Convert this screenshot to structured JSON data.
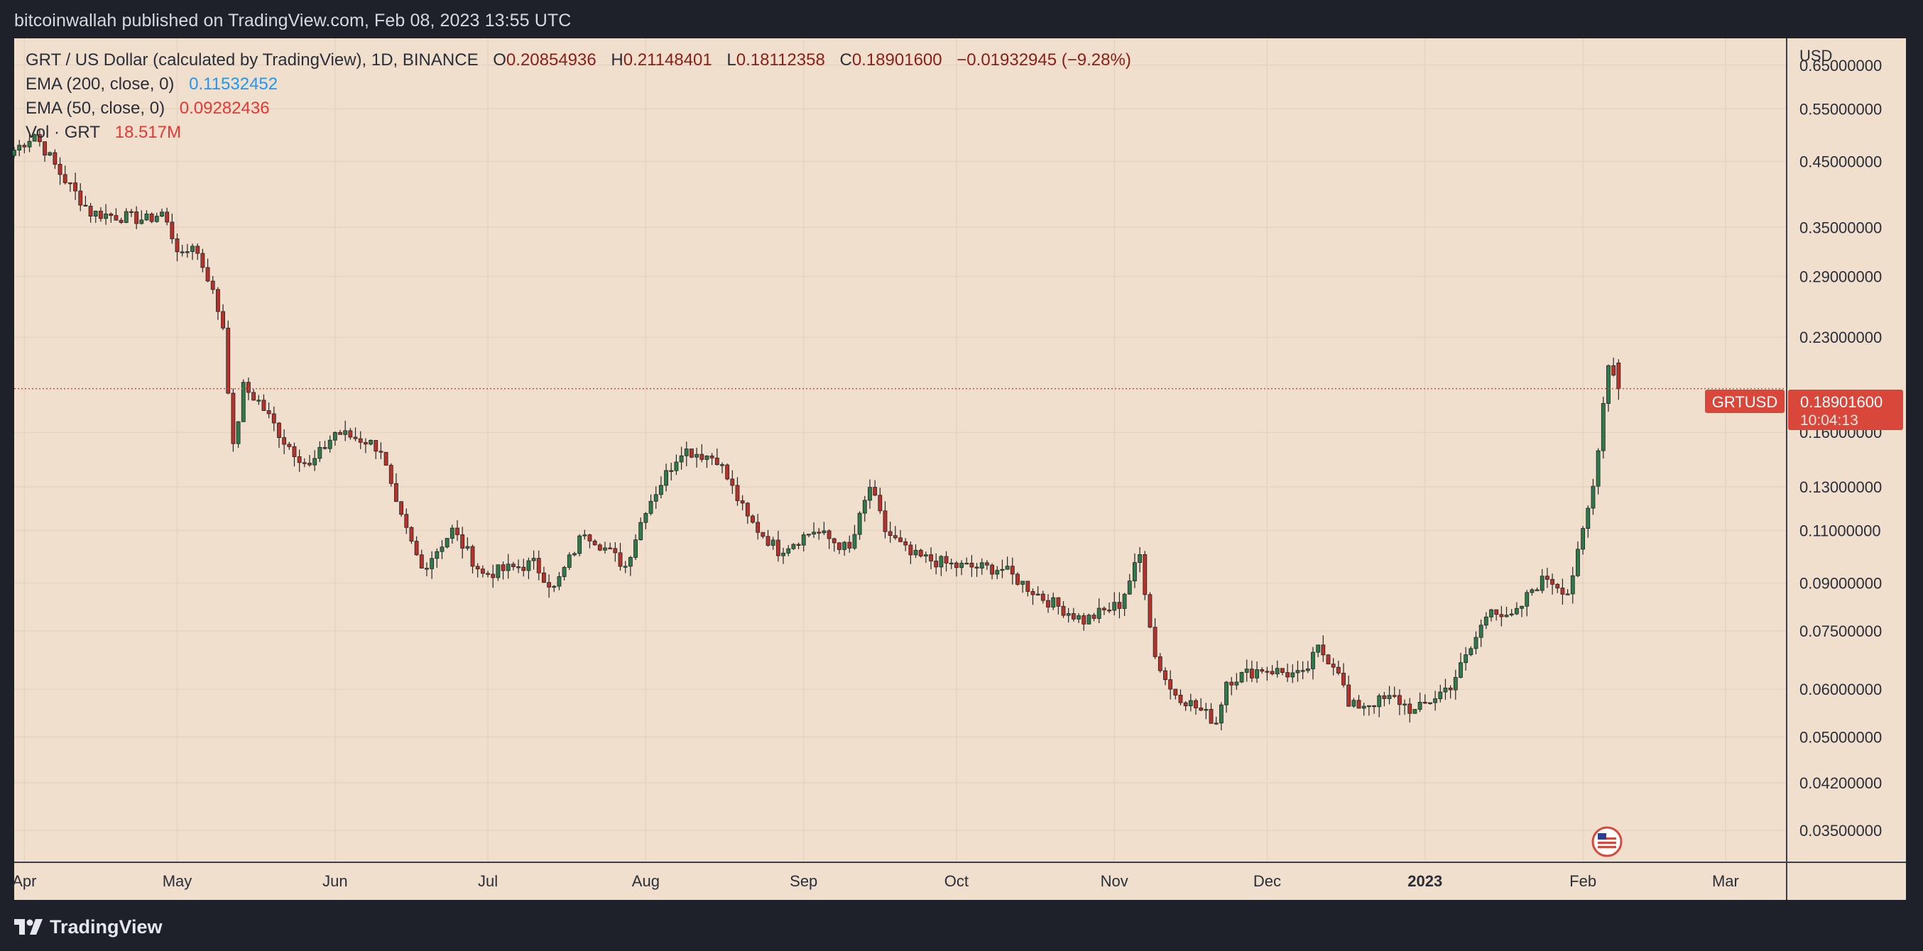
{
  "header": {
    "publisher_line": "bitcoinwallah published on TradingView.com, Feb 08, 2023 13:55 UTC"
  },
  "legend": {
    "symbol_line": "GRT / US Dollar (calculated by TradingView), 1D, BINANCE",
    "ohlc": {
      "o_label": "O",
      "o_value": "0.20854936",
      "h_label": "H",
      "h_value": "0.21148401",
      "l_label": "L",
      "l_value": "0.18112358",
      "c_label": "C",
      "c_value": "0.18901600",
      "change": "−0.01932945 (−9.28%)"
    },
    "ema200_label": "EMA (200, close, 0)",
    "ema200_value": "0.11532452",
    "ema50_label": "EMA (50, close, 0)",
    "ema50_value": "0.09282436",
    "vol_label": "Vol · GRT",
    "vol_value": "18.517M"
  },
  "price_tag": {
    "symbol": "GRTUSD",
    "price": "0.18901600",
    "countdown": "10:04:13"
  },
  "colors": {
    "background": "#f1dfce",
    "up": "#2f7a4a",
    "down": "#b8322c",
    "price_tag": "#d9463a",
    "ema200": "#2196f3",
    "ema50": "#e53935"
  },
  "footer": {
    "brand": "TradingView"
  },
  "chart_data": {
    "type": "candlestick",
    "title": "GRT / US Dollar (calculated by TradingView), 1D, BINANCE",
    "y_unit": "USD",
    "y_scale": "log",
    "ylim": [
      0.031,
      0.72
    ],
    "y_ticks": [
      {
        "label": "0.65000000",
        "value": 0.65
      },
      {
        "label": "0.55000000",
        "value": 0.55
      },
      {
        "label": "0.45000000",
        "value": 0.45
      },
      {
        "label": "0.35000000",
        "value": 0.35
      },
      {
        "label": "0.29000000",
        "value": 0.29
      },
      {
        "label": "0.23000000",
        "value": 0.23
      },
      {
        "label": "0.16000000",
        "value": 0.16
      },
      {
        "label": "0.13000000",
        "value": 0.13
      },
      {
        "label": "0.11000000",
        "value": 0.11
      },
      {
        "label": "0.09000000",
        "value": 0.09
      },
      {
        "label": "0.07500000",
        "value": 0.075
      },
      {
        "label": "0.06000000",
        "value": 0.06
      },
      {
        "label": "0.05000000",
        "value": 0.05
      },
      {
        "label": "0.04200000",
        "value": 0.042
      },
      {
        "label": "0.03500000",
        "value": 0.035
      }
    ],
    "x_range": [
      "2022-03-30",
      "2023-03-13"
    ],
    "x_ticks": [
      {
        "label": "Apr",
        "date": "2022-04-01",
        "bold": false
      },
      {
        "label": "May",
        "date": "2022-05-01",
        "bold": false
      },
      {
        "label": "Jun",
        "date": "2022-06-01",
        "bold": false
      },
      {
        "label": "Jul",
        "date": "2022-07-01",
        "bold": false
      },
      {
        "label": "Aug",
        "date": "2022-08-01",
        "bold": false
      },
      {
        "label": "Sep",
        "date": "2022-09-01",
        "bold": false
      },
      {
        "label": "Oct",
        "date": "2022-10-01",
        "bold": false
      },
      {
        "label": "Nov",
        "date": "2022-11-01",
        "bold": false
      },
      {
        "label": "Dec",
        "date": "2022-12-01",
        "bold": false
      },
      {
        "label": "2023",
        "date": "2023-01-01",
        "bold": true
      },
      {
        "label": "Feb",
        "date": "2023-02-01",
        "bold": false
      },
      {
        "label": "Mar",
        "date": "2023-03-01",
        "bold": false
      }
    ],
    "last_price": 0.189016,
    "close_anchors": [
      {
        "date": "2022-03-30",
        "close": 0.47
      },
      {
        "date": "2022-04-03",
        "close": 0.5
      },
      {
        "date": "2022-04-08",
        "close": 0.43
      },
      {
        "date": "2022-04-14",
        "close": 0.37
      },
      {
        "date": "2022-04-25",
        "close": 0.36
      },
      {
        "date": "2022-04-28",
        "close": 0.37
      },
      {
        "date": "2022-05-02",
        "close": 0.31
      },
      {
        "date": "2022-05-04",
        "close": 0.33
      },
      {
        "date": "2022-05-07",
        "close": 0.29
      },
      {
        "date": "2022-05-10",
        "close": 0.24
      },
      {
        "date": "2022-05-12",
        "close": 0.15
      },
      {
        "date": "2022-05-14",
        "close": 0.19
      },
      {
        "date": "2022-05-17",
        "close": 0.18
      },
      {
        "date": "2022-05-22",
        "close": 0.155
      },
      {
        "date": "2022-05-27",
        "close": 0.14
      },
      {
        "date": "2022-06-01",
        "close": 0.16
      },
      {
        "date": "2022-06-07",
        "close": 0.155
      },
      {
        "date": "2022-06-10",
        "close": 0.15
      },
      {
        "date": "2022-06-13",
        "close": 0.12
      },
      {
        "date": "2022-06-18",
        "close": 0.095
      },
      {
        "date": "2022-06-24",
        "close": 0.11
      },
      {
        "date": "2022-06-30",
        "close": 0.093
      },
      {
        "date": "2022-07-10",
        "close": 0.097
      },
      {
        "date": "2022-07-14",
        "close": 0.088
      },
      {
        "date": "2022-07-20",
        "close": 0.11
      },
      {
        "date": "2022-07-28",
        "close": 0.096
      },
      {
        "date": "2022-08-01",
        "close": 0.12
      },
      {
        "date": "2022-08-08",
        "close": 0.15
      },
      {
        "date": "2022-08-15",
        "close": 0.145
      },
      {
        "date": "2022-08-21",
        "close": 0.115
      },
      {
        "date": "2022-08-27",
        "close": 0.102
      },
      {
        "date": "2022-09-03",
        "close": 0.11
      },
      {
        "date": "2022-09-10",
        "close": 0.102
      },
      {
        "date": "2022-09-14",
        "close": 0.13
      },
      {
        "date": "2022-09-17",
        "close": 0.11
      },
      {
        "date": "2022-09-22",
        "close": 0.1
      },
      {
        "date": "2022-10-01",
        "close": 0.096
      },
      {
        "date": "2022-10-10",
        "close": 0.095
      },
      {
        "date": "2022-10-18",
        "close": 0.085
      },
      {
        "date": "2022-10-26",
        "close": 0.078
      },
      {
        "date": "2022-11-02",
        "close": 0.083
      },
      {
        "date": "2022-11-06",
        "close": 0.1
      },
      {
        "date": "2022-11-09",
        "close": 0.068
      },
      {
        "date": "2022-11-12",
        "close": 0.06
      },
      {
        "date": "2022-11-21",
        "close": 0.053
      },
      {
        "date": "2022-11-23",
        "close": 0.062
      },
      {
        "date": "2022-11-30",
        "close": 0.065
      },
      {
        "date": "2022-12-08",
        "close": 0.063
      },
      {
        "date": "2022-12-11",
        "close": 0.07
      },
      {
        "date": "2022-12-15",
        "close": 0.065
      },
      {
        "date": "2022-12-17",
        "close": 0.056
      },
      {
        "date": "2022-12-26",
        "close": 0.058
      },
      {
        "date": "2022-12-30",
        "close": 0.055
      },
      {
        "date": "2023-01-06",
        "close": 0.061
      },
      {
        "date": "2023-01-10",
        "close": 0.07
      },
      {
        "date": "2023-01-14",
        "close": 0.083
      },
      {
        "date": "2023-01-17",
        "close": 0.078
      },
      {
        "date": "2023-01-19",
        "close": 0.08
      },
      {
        "date": "2023-01-22",
        "close": 0.088
      },
      {
        "date": "2023-01-25",
        "close": 0.092
      },
      {
        "date": "2023-01-29",
        "close": 0.087
      },
      {
        "date": "2023-01-31",
        "close": 0.1
      },
      {
        "date": "2023-02-03",
        "close": 0.13
      },
      {
        "date": "2023-02-06",
        "close": 0.21
      },
      {
        "date": "2023-02-08",
        "close": 0.189016
      }
    ]
  }
}
